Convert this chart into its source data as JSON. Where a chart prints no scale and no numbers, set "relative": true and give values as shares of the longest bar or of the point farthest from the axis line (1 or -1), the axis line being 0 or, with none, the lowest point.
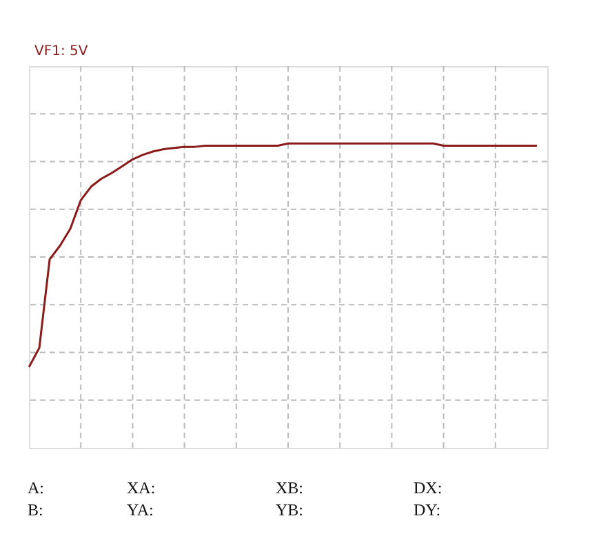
{
  "chart_data": {
    "type": "line",
    "title": "VF1: 5V",
    "relative": true,
    "grid": true,
    "categories": [
      null,
      null,
      null,
      null,
      null,
      null,
      null,
      null,
      null,
      null,
      null,
      null,
      null,
      null,
      null,
      null,
      null,
      null,
      null,
      null,
      null,
      null,
      null,
      null,
      null,
      null,
      null,
      null,
      null,
      null,
      null,
      null,
      null,
      null,
      null,
      null,
      null,
      null,
      null,
      null,
      null,
      null,
      null,
      null,
      null,
      null,
      null,
      null,
      null,
      null
    ],
    "series": [
      {
        "color": "#8b1a1a",
        "values": [
          -0.97,
          -0.8,
          -0.02,
          0.1,
          0.25,
          0.5,
          0.62,
          0.69,
          0.74,
          0.8,
          0.86,
          0.9,
          0.93,
          0.95,
          0.96,
          0.97,
          0.97,
          0.98,
          0.98,
          0.98,
          0.98,
          0.98,
          0.98,
          0.98,
          0.98,
          1,
          1,
          1,
          1,
          1,
          1,
          1,
          1,
          1,
          1,
          1,
          1,
          1,
          1,
          1,
          0.98,
          0.98,
          0.98,
          0.98,
          0.98,
          0.98,
          0.98,
          0.98,
          0.98,
          0.98
        ]
      }
    ],
    "annotations": [
      "A:",
      "XA:",
      "XB:",
      "DX:",
      "B:",
      "YA:",
      "YB:",
      "DY:"
    ]
  }
}
